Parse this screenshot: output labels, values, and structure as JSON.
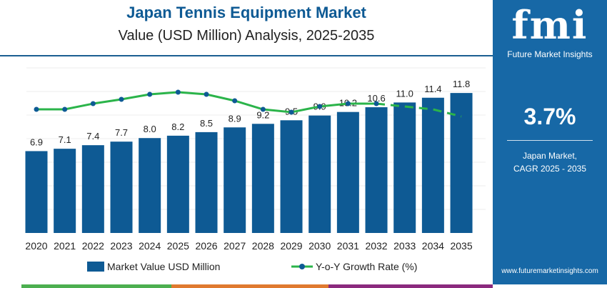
{
  "header": {
    "title": "Japan Tennis Equipment Market",
    "subtitle": "Value (USD Million) Analysis, 2025-2035"
  },
  "chart_data": {
    "type": "bar",
    "categories": [
      "2020",
      "2021",
      "2022",
      "2023",
      "2024",
      "2025",
      "2026",
      "2027",
      "2028",
      "2029",
      "2030",
      "2031",
      "2032",
      "2033",
      "2034",
      "2035"
    ],
    "series": [
      {
        "name": "Market Value USD Million",
        "type": "bar",
        "color": "#0e5a94",
        "values": [
          6.9,
          7.1,
          7.4,
          7.7,
          8.0,
          8.2,
          8.5,
          8.9,
          9.2,
          9.5,
          9.9,
          10.2,
          10.6,
          11.0,
          11.4,
          11.8
        ]
      },
      {
        "name": "Y-o-Y Growth Rate (%)",
        "type": "line",
        "color": "#2bb44a",
        "values": [
          3.0,
          3.0,
          3.4,
          3.7,
          4.05,
          4.2,
          4.05,
          3.6,
          3.0,
          2.8,
          3.2,
          3.4,
          3.4,
          3.2,
          3.0,
          2.5
        ],
        "dashed_from": "2032"
      }
    ],
    "ylim": [
      0,
      12
    ],
    "grid": true,
    "legend": "bottom"
  },
  "panel": {
    "logo": "fmi",
    "brand": "Future Market Insights",
    "cagr": "3.7%",
    "caption1": "Japan Market,",
    "caption2": "CAGR 2025 - 2035",
    "url": "www.futuremarketinsights.com",
    "color": "#1768a6"
  }
}
